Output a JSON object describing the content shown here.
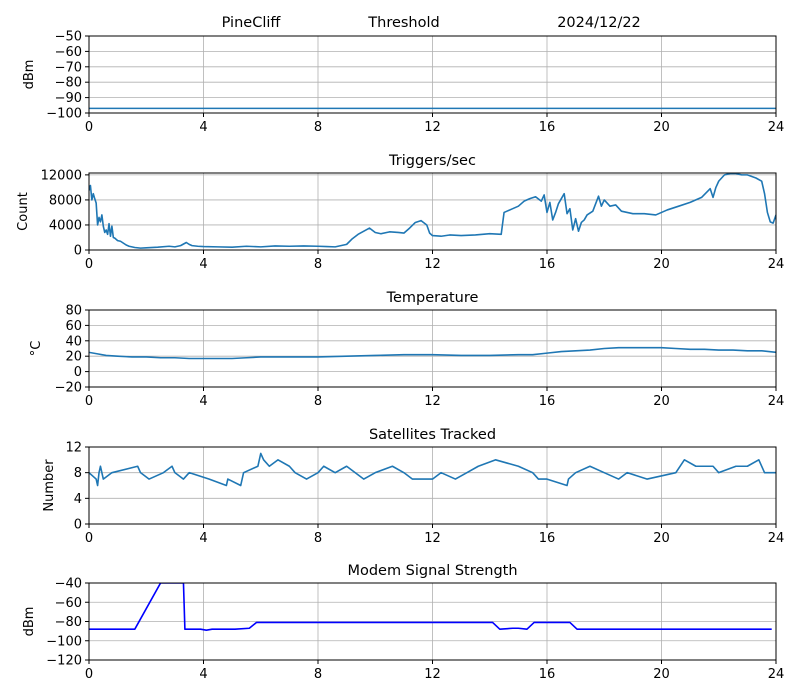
{
  "figure": {
    "header": {
      "station": "PineCliff",
      "panel": "Threshold",
      "date": "2024/12/22"
    }
  },
  "chart_data": [
    {
      "id": "threshold",
      "type": "line",
      "title": "",
      "xlabel": "",
      "ylabel": "dBm",
      "xlim": [
        0,
        24
      ],
      "ylim": [
        -100,
        -50
      ],
      "xticks": [
        0,
        4,
        8,
        12,
        16,
        20,
        24
      ],
      "yticks": [
        -100,
        -90,
        -80,
        -70,
        -60,
        -50
      ],
      "ytick_labels": [
        "−100",
        "−90",
        "−80",
        "−70",
        "−60",
        "−50"
      ],
      "grid": true,
      "color": "#1f77b4",
      "series": [
        {
          "name": "Threshold",
          "x": [
            0,
            24
          ],
          "y": [
            -97,
            -97
          ]
        }
      ]
    },
    {
      "id": "triggers",
      "type": "line",
      "title": "Triggers/sec",
      "xlabel": "",
      "ylabel": "Count",
      "xlim": [
        0,
        24
      ],
      "ylim": [
        0,
        12300
      ],
      "xticks": [
        0,
        4,
        8,
        12,
        16,
        20,
        24
      ],
      "yticks": [
        0,
        4000,
        8000,
        12000
      ],
      "ytick_labels": [
        "0",
        "4000",
        "8000",
        "12000"
      ],
      "grid": true,
      "color": "#1f77b4",
      "series": [
        {
          "name": "Triggers/sec",
          "x": [
            0,
            0.05,
            0.1,
            0.15,
            0.2,
            0.25,
            0.3,
            0.35,
            0.4,
            0.45,
            0.5,
            0.55,
            0.6,
            0.65,
            0.7,
            0.75,
            0.8,
            0.85,
            0.9,
            1.0,
            1.1,
            1.2,
            1.3,
            1.4,
            1.6,
            1.8,
            2.0,
            2.4,
            2.8,
            3.0,
            3.2,
            3.4,
            3.5,
            3.6,
            3.8,
            4.0,
            4.5,
            5.0,
            5.5,
            6.0,
            6.5,
            7.0,
            7.5,
            8.0,
            8.3,
            8.6,
            8.8,
            9.0,
            9.2,
            9.4,
            9.6,
            9.8,
            10.0,
            10.2,
            10.5,
            10.8,
            11.0,
            11.2,
            11.4,
            11.6,
            11.8,
            11.9,
            12.0,
            12.3,
            12.6,
            13.0,
            13.5,
            14.0,
            14.4,
            14.5,
            14.6,
            14.8,
            15.0,
            15.2,
            15.4,
            15.6,
            15.8,
            15.9,
            16.0,
            16.1,
            16.2,
            16.3,
            16.4,
            16.5,
            16.6,
            16.7,
            16.8,
            16.9,
            17.0,
            17.1,
            17.2,
            17.3,
            17.4,
            17.6,
            17.8,
            17.9,
            18.0,
            18.2,
            18.4,
            18.6,
            19.0,
            19.4,
            19.8,
            20.2,
            20.6,
            21.0,
            21.4,
            21.7,
            21.8,
            21.9,
            22.0,
            22.2,
            22.4,
            22.6,
            22.8,
            23.0,
            23.3,
            23.5,
            23.6,
            23.7,
            23.8,
            23.9,
            24.0
          ],
          "y": [
            9500,
            10300,
            8000,
            9000,
            8200,
            7500,
            4000,
            5200,
            4500,
            5600,
            3800,
            2800,
            3200,
            2500,
            4200,
            2200,
            3800,
            2000,
            1900,
            1500,
            1400,
            1100,
            800,
            600,
            400,
            300,
            350,
            450,
            600,
            500,
            700,
            1200,
            900,
            700,
            600,
            550,
            500,
            450,
            600,
            500,
            650,
            600,
            650,
            600,
            550,
            500,
            700,
            900,
            1800,
            2500,
            3000,
            3500,
            2800,
            2600,
            2900,
            2800,
            2700,
            3500,
            4400,
            4700,
            4000,
            2700,
            2300,
            2200,
            2400,
            2300,
            2400,
            2600,
            2500,
            6000,
            6200,
            6600,
            7000,
            7800,
            8200,
            8500,
            7800,
            8800,
            6000,
            7600,
            4800,
            6000,
            7400,
            8200,
            9000,
            5800,
            6600,
            3200,
            5000,
            3000,
            4400,
            4800,
            5600,
            6200,
            8600,
            7000,
            8000,
            7000,
            7200,
            6200,
            5800,
            5800,
            5600,
            6400,
            7000,
            7600,
            8400,
            9800,
            8400,
            10000,
            11000,
            12000,
            12200,
            12200,
            12000,
            12000,
            11500,
            11000,
            9000,
            6000,
            4500,
            4300,
            5600
          ]
        }
      ]
    },
    {
      "id": "temperature",
      "type": "line",
      "title": "Temperature",
      "xlabel": "",
      "ylabel": "°C",
      "xlim": [
        0,
        24
      ],
      "ylim": [
        -20,
        80
      ],
      "xticks": [
        0,
        4,
        8,
        12,
        16,
        20,
        24
      ],
      "yticks": [
        -20,
        0,
        20,
        40,
        60,
        80
      ],
      "ytick_labels": [
        "−20",
        "0",
        "20",
        "40",
        "60",
        "80"
      ],
      "grid": true,
      "color": "#1f77b4",
      "series": [
        {
          "name": "Temperature",
          "x": [
            0,
            0.3,
            0.6,
            1.0,
            1.5,
            2.0,
            2.5,
            3.0,
            3.5,
            4.0,
            4.5,
            5.0,
            5.5,
            6.0,
            7.0,
            8.0,
            9.0,
            10.0,
            11.0,
            12.0,
            13.0,
            14.0,
            15.0,
            15.5,
            16.0,
            16.5,
            17.0,
            17.5,
            18.0,
            18.5,
            19.0,
            20.0,
            20.5,
            21.0,
            21.5,
            22.0,
            22.5,
            23.0,
            23.5,
            24.0
          ],
          "y": [
            25,
            23,
            21,
            20,
            19,
            19,
            18,
            18,
            17,
            17,
            17,
            17,
            18,
            19,
            19,
            19,
            20,
            21,
            22,
            22,
            21,
            21,
            22,
            22,
            24,
            26,
            27,
            28,
            30,
            31,
            31,
            31,
            30,
            29,
            29,
            28,
            28,
            27,
            27,
            25
          ]
        }
      ]
    },
    {
      "id": "satellites",
      "type": "line",
      "title": "Satellites Tracked",
      "xlabel": "",
      "ylabel": "Number",
      "xlim": [
        0,
        24
      ],
      "ylim": [
        0,
        12
      ],
      "xticks": [
        0,
        4,
        8,
        12,
        16,
        20,
        24
      ],
      "yticks": [
        0,
        4,
        8,
        12
      ],
      "ytick_labels": [
        "0",
        "4",
        "8",
        "12"
      ],
      "grid": true,
      "color": "#1f77b4",
      "series": [
        {
          "name": "Satellites",
          "x": [
            0,
            0.25,
            0.3,
            0.35,
            0.4,
            0.45,
            0.5,
            0.8,
            1.7,
            1.8,
            2.1,
            2.6,
            2.9,
            3.0,
            3.3,
            3.5,
            4.2,
            4.8,
            4.85,
            5.3,
            5.4,
            5.9,
            6.0,
            6.1,
            6.3,
            6.6,
            7.0,
            7.2,
            7.6,
            8.0,
            8.2,
            8.6,
            9.0,
            9.6,
            10.0,
            10.6,
            11.0,
            11.3,
            12.0,
            12.3,
            12.8,
            13.2,
            13.6,
            14.2,
            15.0,
            15.5,
            15.7,
            16.0,
            16.7,
            16.75,
            17.0,
            17.5,
            18.0,
            18.5,
            18.8,
            19.5,
            20.5,
            20.8,
            21.2,
            21.8,
            22.0,
            22.6,
            23.0,
            23.4,
            23.6,
            24.0
          ],
          "y": [
            8,
            7,
            6,
            8,
            9,
            8,
            7,
            8,
            9,
            8,
            7,
            8,
            9,
            8,
            7,
            8,
            7,
            6,
            7,
            6,
            8,
            9,
            11,
            10,
            9,
            10,
            9,
            8,
            7,
            8,
            9,
            8,
            9,
            7,
            8,
            9,
            8,
            7,
            7,
            8,
            7,
            8,
            9,
            10,
            9,
            8,
            7,
            7,
            6,
            7,
            8,
            9,
            8,
            7,
            8,
            7,
            8,
            10,
            9,
            9,
            8,
            9,
            9,
            10,
            8,
            8
          ]
        }
      ]
    },
    {
      "id": "modem",
      "type": "line",
      "title": "Modem Signal Strength",
      "xlabel": "",
      "ylabel": "dBm",
      "xlim": [
        0,
        24
      ],
      "ylim": [
        -120,
        -40
      ],
      "xticks": [
        0,
        4,
        8,
        12,
        16,
        20,
        24
      ],
      "yticks": [
        -120,
        -100,
        -80,
        -60,
        -40
      ],
      "ytick_labels": [
        "−120",
        "−100",
        "−80",
        "−60",
        "−40"
      ],
      "grid": true,
      "color": "#0000ff",
      "series": [
        {
          "name": "Modem Signal",
          "x": [
            0,
            1.6,
            2.5,
            3.3,
            3.35,
            3.9,
            4.1,
            4.3,
            5.1,
            5.6,
            5.85,
            14.1,
            14.35,
            14.8,
            15.0,
            15.3,
            15.55,
            16.8,
            17.05,
            23.85
          ],
          "y": [
            -88,
            -88,
            -40,
            -40,
            -88,
            -88,
            -89,
            -88,
            -88,
            -87,
            -81,
            -81,
            -88,
            -87,
            -87,
            -88,
            -81,
            -81,
            -88,
            -88
          ]
        }
      ]
    }
  ]
}
